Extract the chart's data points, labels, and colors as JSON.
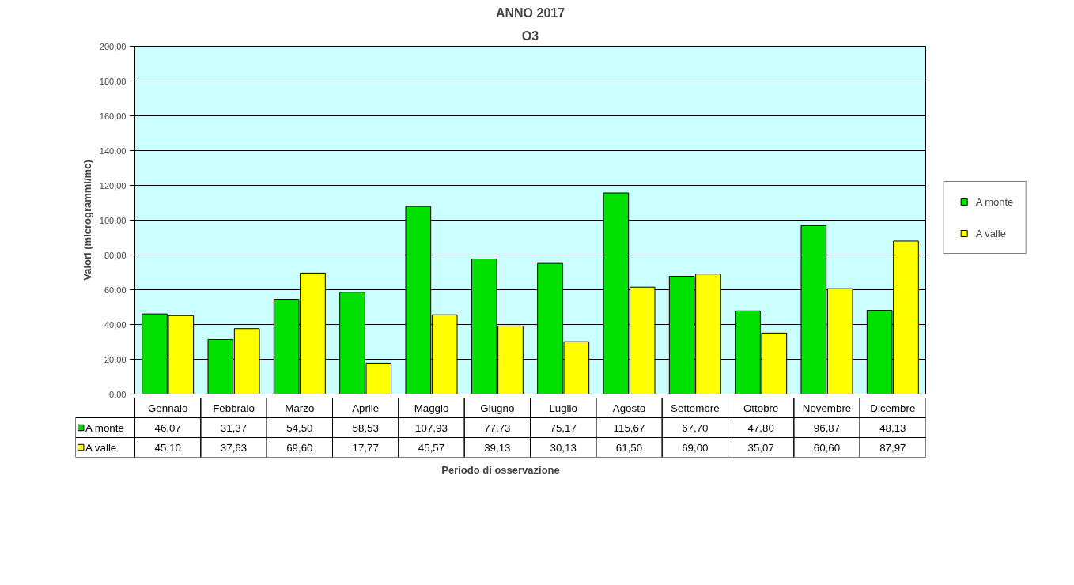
{
  "chart_data": {
    "type": "bar",
    "title": "ANNO 2017",
    "subtitle": "O3",
    "xlabel": "Periodo di osservazione",
    "ylabel": "Valori (microgrammi/mc)",
    "categories": [
      "Gennaio",
      "Febbraio",
      "Marzo",
      "Aprile",
      "Maggio",
      "Giugno",
      "Luglio",
      "Agosto",
      "Settembre",
      "Ottobre",
      "Novembre",
      "Dicembre"
    ],
    "series": [
      {
        "name": "A monte",
        "color": "#00e000",
        "values": [
          46.07,
          31.37,
          54.5,
          58.53,
          107.93,
          77.73,
          75.17,
          115.67,
          67.7,
          47.8,
          96.87,
          48.13
        ],
        "value_labels": [
          "46,07",
          "31,37",
          "54,50",
          "58,53",
          "107,93",
          "77,73",
          "75,17",
          "115,67",
          "67,70",
          "47,80",
          "96,87",
          "48,13"
        ]
      },
      {
        "name": "A valle",
        "color": "#ffff00",
        "values": [
          45.1,
          37.63,
          69.6,
          17.77,
          45.57,
          39.13,
          30.13,
          61.5,
          69.0,
          35.07,
          60.6,
          87.97
        ],
        "value_labels": [
          "45,10",
          "37,63",
          "69,60",
          "17,77",
          "45,57",
          "39,13",
          "30,13",
          "61,50",
          "69,00",
          "35,07",
          "60,60",
          "87,97"
        ]
      }
    ],
    "ylim": [
      0,
      200
    ],
    "yticks": [
      {
        "value": 0,
        "label": "0,00"
      },
      {
        "value": 20,
        "label": "20,00"
      },
      {
        "value": 40,
        "label": "40,00"
      },
      {
        "value": 60,
        "label": "60,00"
      },
      {
        "value": 80,
        "label": "80,00"
      },
      {
        "value": 100,
        "label": "100,00"
      },
      {
        "value": 120,
        "label": "120,00"
      },
      {
        "value": 140,
        "label": "140,00"
      },
      {
        "value": 160,
        "label": "160,00"
      },
      {
        "value": 180,
        "label": "180,00"
      },
      {
        "value": 200,
        "label": "200,00"
      }
    ],
    "grid": "y",
    "legend": "right"
  }
}
